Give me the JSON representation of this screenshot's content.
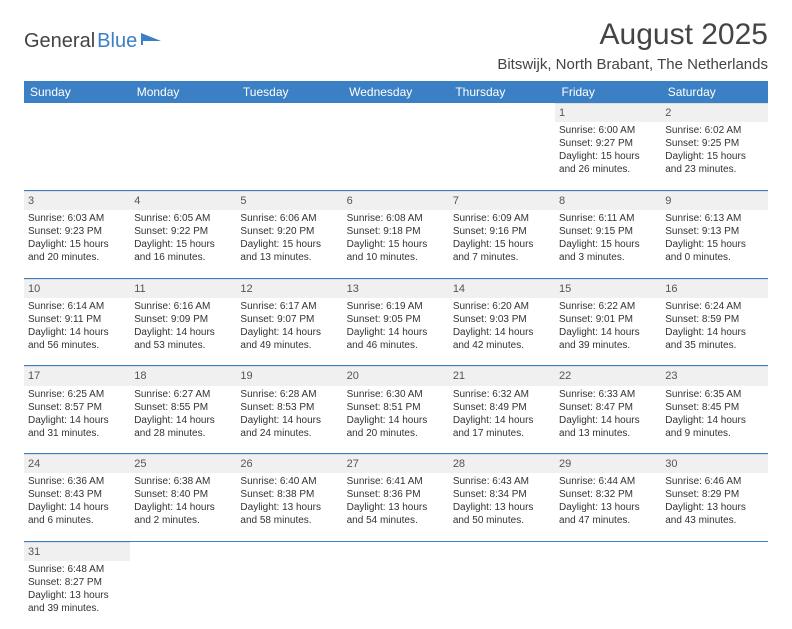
{
  "logo": {
    "part1": "General",
    "part2": "Blue"
  },
  "title": "August 2025",
  "location": "Bitswijk, North Brabant, The Netherlands",
  "colors": {
    "header_bg": "#3b7fc4",
    "header_text": "#ffffff",
    "daynum_bg": "#f0f0f0",
    "border": "#3b7fc4",
    "text": "#333333",
    "logo_accent": "#3b7fc4"
  },
  "day_headers": [
    "Sunday",
    "Monday",
    "Tuesday",
    "Wednesday",
    "Thursday",
    "Friday",
    "Saturday"
  ],
  "weeks": [
    [
      null,
      null,
      null,
      null,
      null,
      {
        "n": "1",
        "sr": "6:00 AM",
        "ss": "9:27 PM",
        "dl": "15 hours and 26 minutes."
      },
      {
        "n": "2",
        "sr": "6:02 AM",
        "ss": "9:25 PM",
        "dl": "15 hours and 23 minutes."
      }
    ],
    [
      {
        "n": "3",
        "sr": "6:03 AM",
        "ss": "9:23 PM",
        "dl": "15 hours and 20 minutes."
      },
      {
        "n": "4",
        "sr": "6:05 AM",
        "ss": "9:22 PM",
        "dl": "15 hours and 16 minutes."
      },
      {
        "n": "5",
        "sr": "6:06 AM",
        "ss": "9:20 PM",
        "dl": "15 hours and 13 minutes."
      },
      {
        "n": "6",
        "sr": "6:08 AM",
        "ss": "9:18 PM",
        "dl": "15 hours and 10 minutes."
      },
      {
        "n": "7",
        "sr": "6:09 AM",
        "ss": "9:16 PM",
        "dl": "15 hours and 7 minutes."
      },
      {
        "n": "8",
        "sr": "6:11 AM",
        "ss": "9:15 PM",
        "dl": "15 hours and 3 minutes."
      },
      {
        "n": "9",
        "sr": "6:13 AM",
        "ss": "9:13 PM",
        "dl": "15 hours and 0 minutes."
      }
    ],
    [
      {
        "n": "10",
        "sr": "6:14 AM",
        "ss": "9:11 PM",
        "dl": "14 hours and 56 minutes."
      },
      {
        "n": "11",
        "sr": "6:16 AM",
        "ss": "9:09 PM",
        "dl": "14 hours and 53 minutes."
      },
      {
        "n": "12",
        "sr": "6:17 AM",
        "ss": "9:07 PM",
        "dl": "14 hours and 49 minutes."
      },
      {
        "n": "13",
        "sr": "6:19 AM",
        "ss": "9:05 PM",
        "dl": "14 hours and 46 minutes."
      },
      {
        "n": "14",
        "sr": "6:20 AM",
        "ss": "9:03 PM",
        "dl": "14 hours and 42 minutes."
      },
      {
        "n": "15",
        "sr": "6:22 AM",
        "ss": "9:01 PM",
        "dl": "14 hours and 39 minutes."
      },
      {
        "n": "16",
        "sr": "6:24 AM",
        "ss": "8:59 PM",
        "dl": "14 hours and 35 minutes."
      }
    ],
    [
      {
        "n": "17",
        "sr": "6:25 AM",
        "ss": "8:57 PM",
        "dl": "14 hours and 31 minutes."
      },
      {
        "n": "18",
        "sr": "6:27 AM",
        "ss": "8:55 PM",
        "dl": "14 hours and 28 minutes."
      },
      {
        "n": "19",
        "sr": "6:28 AM",
        "ss": "8:53 PM",
        "dl": "14 hours and 24 minutes."
      },
      {
        "n": "20",
        "sr": "6:30 AM",
        "ss": "8:51 PM",
        "dl": "14 hours and 20 minutes."
      },
      {
        "n": "21",
        "sr": "6:32 AM",
        "ss": "8:49 PM",
        "dl": "14 hours and 17 minutes."
      },
      {
        "n": "22",
        "sr": "6:33 AM",
        "ss": "8:47 PM",
        "dl": "14 hours and 13 minutes."
      },
      {
        "n": "23",
        "sr": "6:35 AM",
        "ss": "8:45 PM",
        "dl": "14 hours and 9 minutes."
      }
    ],
    [
      {
        "n": "24",
        "sr": "6:36 AM",
        "ss": "8:43 PM",
        "dl": "14 hours and 6 minutes."
      },
      {
        "n": "25",
        "sr": "6:38 AM",
        "ss": "8:40 PM",
        "dl": "14 hours and 2 minutes."
      },
      {
        "n": "26",
        "sr": "6:40 AM",
        "ss": "8:38 PM",
        "dl": "13 hours and 58 minutes."
      },
      {
        "n": "27",
        "sr": "6:41 AM",
        "ss": "8:36 PM",
        "dl": "13 hours and 54 minutes."
      },
      {
        "n": "28",
        "sr": "6:43 AM",
        "ss": "8:34 PM",
        "dl": "13 hours and 50 minutes."
      },
      {
        "n": "29",
        "sr": "6:44 AM",
        "ss": "8:32 PM",
        "dl": "13 hours and 47 minutes."
      },
      {
        "n": "30",
        "sr": "6:46 AM",
        "ss": "8:29 PM",
        "dl": "13 hours and 43 minutes."
      }
    ],
    [
      {
        "n": "31",
        "sr": "6:48 AM",
        "ss": "8:27 PM",
        "dl": "13 hours and 39 minutes."
      },
      null,
      null,
      null,
      null,
      null,
      null
    ]
  ],
  "labels": {
    "sunrise": "Sunrise: ",
    "sunset": "Sunset: ",
    "daylight": "Daylight: "
  }
}
